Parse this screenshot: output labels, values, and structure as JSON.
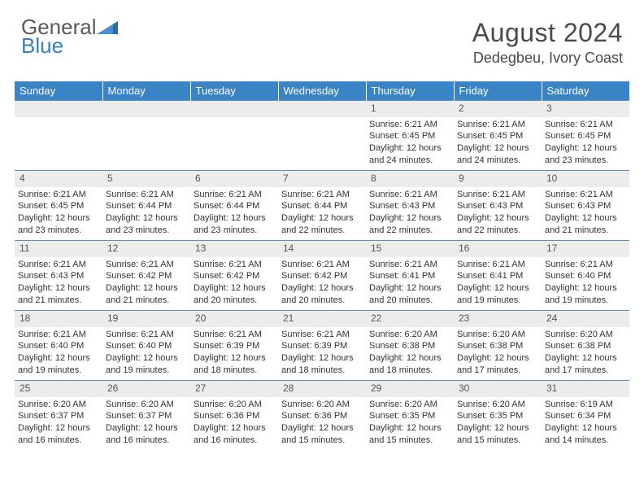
{
  "logo": {
    "word1": "General",
    "word2": "Blue"
  },
  "title": "August 2024",
  "location": "Dedegbeu, Ivory Coast",
  "colors": {
    "header_bg": "#3a84c6",
    "header_text": "#ffffff",
    "daynum_bg": "#ececec",
    "row_border": "#5a8fc0",
    "logo_gray": "#5a5a5a",
    "logo_blue": "#3a7fc4"
  },
  "columns": [
    "Sunday",
    "Monday",
    "Tuesday",
    "Wednesday",
    "Thursday",
    "Friday",
    "Saturday"
  ],
  "weeks": [
    [
      {
        "n": "",
        "lines": []
      },
      {
        "n": "",
        "lines": []
      },
      {
        "n": "",
        "lines": []
      },
      {
        "n": "",
        "lines": []
      },
      {
        "n": "1",
        "lines": [
          "Sunrise: 6:21 AM",
          "Sunset: 6:45 PM",
          "Daylight: 12 hours",
          "and 24 minutes."
        ]
      },
      {
        "n": "2",
        "lines": [
          "Sunrise: 6:21 AM",
          "Sunset: 6:45 PM",
          "Daylight: 12 hours",
          "and 24 minutes."
        ]
      },
      {
        "n": "3",
        "lines": [
          "Sunrise: 6:21 AM",
          "Sunset: 6:45 PM",
          "Daylight: 12 hours",
          "and 23 minutes."
        ]
      }
    ],
    [
      {
        "n": "4",
        "lines": [
          "Sunrise: 6:21 AM",
          "Sunset: 6:45 PM",
          "Daylight: 12 hours",
          "and 23 minutes."
        ]
      },
      {
        "n": "5",
        "lines": [
          "Sunrise: 6:21 AM",
          "Sunset: 6:44 PM",
          "Daylight: 12 hours",
          "and 23 minutes."
        ]
      },
      {
        "n": "6",
        "lines": [
          "Sunrise: 6:21 AM",
          "Sunset: 6:44 PM",
          "Daylight: 12 hours",
          "and 23 minutes."
        ]
      },
      {
        "n": "7",
        "lines": [
          "Sunrise: 6:21 AM",
          "Sunset: 6:44 PM",
          "Daylight: 12 hours",
          "and 22 minutes."
        ]
      },
      {
        "n": "8",
        "lines": [
          "Sunrise: 6:21 AM",
          "Sunset: 6:43 PM",
          "Daylight: 12 hours",
          "and 22 minutes."
        ]
      },
      {
        "n": "9",
        "lines": [
          "Sunrise: 6:21 AM",
          "Sunset: 6:43 PM",
          "Daylight: 12 hours",
          "and 22 minutes."
        ]
      },
      {
        "n": "10",
        "lines": [
          "Sunrise: 6:21 AM",
          "Sunset: 6:43 PM",
          "Daylight: 12 hours",
          "and 21 minutes."
        ]
      }
    ],
    [
      {
        "n": "11",
        "lines": [
          "Sunrise: 6:21 AM",
          "Sunset: 6:43 PM",
          "Daylight: 12 hours",
          "and 21 minutes."
        ]
      },
      {
        "n": "12",
        "lines": [
          "Sunrise: 6:21 AM",
          "Sunset: 6:42 PM",
          "Daylight: 12 hours",
          "and 21 minutes."
        ]
      },
      {
        "n": "13",
        "lines": [
          "Sunrise: 6:21 AM",
          "Sunset: 6:42 PM",
          "Daylight: 12 hours",
          "and 20 minutes."
        ]
      },
      {
        "n": "14",
        "lines": [
          "Sunrise: 6:21 AM",
          "Sunset: 6:42 PM",
          "Daylight: 12 hours",
          "and 20 minutes."
        ]
      },
      {
        "n": "15",
        "lines": [
          "Sunrise: 6:21 AM",
          "Sunset: 6:41 PM",
          "Daylight: 12 hours",
          "and 20 minutes."
        ]
      },
      {
        "n": "16",
        "lines": [
          "Sunrise: 6:21 AM",
          "Sunset: 6:41 PM",
          "Daylight: 12 hours",
          "and 19 minutes."
        ]
      },
      {
        "n": "17",
        "lines": [
          "Sunrise: 6:21 AM",
          "Sunset: 6:40 PM",
          "Daylight: 12 hours",
          "and 19 minutes."
        ]
      }
    ],
    [
      {
        "n": "18",
        "lines": [
          "Sunrise: 6:21 AM",
          "Sunset: 6:40 PM",
          "Daylight: 12 hours",
          "and 19 minutes."
        ]
      },
      {
        "n": "19",
        "lines": [
          "Sunrise: 6:21 AM",
          "Sunset: 6:40 PM",
          "Daylight: 12 hours",
          "and 19 minutes."
        ]
      },
      {
        "n": "20",
        "lines": [
          "Sunrise: 6:21 AM",
          "Sunset: 6:39 PM",
          "Daylight: 12 hours",
          "and 18 minutes."
        ]
      },
      {
        "n": "21",
        "lines": [
          "Sunrise: 6:21 AM",
          "Sunset: 6:39 PM",
          "Daylight: 12 hours",
          "and 18 minutes."
        ]
      },
      {
        "n": "22",
        "lines": [
          "Sunrise: 6:20 AM",
          "Sunset: 6:38 PM",
          "Daylight: 12 hours",
          "and 18 minutes."
        ]
      },
      {
        "n": "23",
        "lines": [
          "Sunrise: 6:20 AM",
          "Sunset: 6:38 PM",
          "Daylight: 12 hours",
          "and 17 minutes."
        ]
      },
      {
        "n": "24",
        "lines": [
          "Sunrise: 6:20 AM",
          "Sunset: 6:38 PM",
          "Daylight: 12 hours",
          "and 17 minutes."
        ]
      }
    ],
    [
      {
        "n": "25",
        "lines": [
          "Sunrise: 6:20 AM",
          "Sunset: 6:37 PM",
          "Daylight: 12 hours",
          "and 16 minutes."
        ]
      },
      {
        "n": "26",
        "lines": [
          "Sunrise: 6:20 AM",
          "Sunset: 6:37 PM",
          "Daylight: 12 hours",
          "and 16 minutes."
        ]
      },
      {
        "n": "27",
        "lines": [
          "Sunrise: 6:20 AM",
          "Sunset: 6:36 PM",
          "Daylight: 12 hours",
          "and 16 minutes."
        ]
      },
      {
        "n": "28",
        "lines": [
          "Sunrise: 6:20 AM",
          "Sunset: 6:36 PM",
          "Daylight: 12 hours",
          "and 15 minutes."
        ]
      },
      {
        "n": "29",
        "lines": [
          "Sunrise: 6:20 AM",
          "Sunset: 6:35 PM",
          "Daylight: 12 hours",
          "and 15 minutes."
        ]
      },
      {
        "n": "30",
        "lines": [
          "Sunrise: 6:20 AM",
          "Sunset: 6:35 PM",
          "Daylight: 12 hours",
          "and 15 minutes."
        ]
      },
      {
        "n": "31",
        "lines": [
          "Sunrise: 6:19 AM",
          "Sunset: 6:34 PM",
          "Daylight: 12 hours",
          "and 14 minutes."
        ]
      }
    ]
  ]
}
